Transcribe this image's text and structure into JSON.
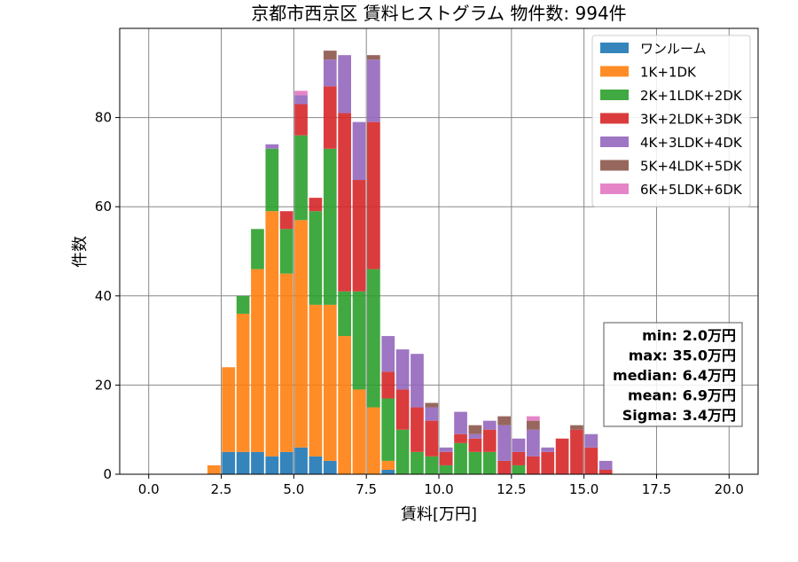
{
  "chart_data": {
    "type": "bar",
    "title": "京都市西京区 賃料ヒストグラム 物件数: 994件",
    "xlabel": "賃料[万円]",
    "ylabel": "件数",
    "xlim": [
      -1.0,
      21.0
    ],
    "ylim": [
      0,
      100
    ],
    "x_ticks": [
      0.0,
      2.5,
      5.0,
      7.5,
      10.0,
      12.5,
      15.0,
      17.5,
      20.0
    ],
    "x_tick_labels": [
      "0.0",
      "2.5",
      "5.0",
      "7.5",
      "10.0",
      "12.5",
      "15.0",
      "17.5",
      "20.0"
    ],
    "y_ticks": [
      0,
      20,
      40,
      60,
      80
    ],
    "y_tick_labels": [
      "0",
      "20",
      "40",
      "60",
      "80"
    ],
    "grid": true,
    "stacked": true,
    "legend_position": "top-right",
    "bin_width": 0.5,
    "bin_starts": [
      2.0,
      2.5,
      3.0,
      3.5,
      4.0,
      4.5,
      5.0,
      5.5,
      6.0,
      6.5,
      7.0,
      7.5,
      8.0,
      8.5,
      9.0,
      9.5,
      10.0,
      10.5,
      11.0,
      11.5,
      12.0,
      12.5,
      13.0,
      13.5,
      14.0,
      14.5,
      15.0,
      15.5
    ],
    "series": [
      {
        "name": "ワンルーム",
        "color": "#1f77b4",
        "values": [
          0,
          5,
          5,
          5,
          4,
          5,
          6,
          4,
          3,
          0,
          0,
          0,
          1,
          0,
          0,
          0,
          0,
          0,
          0,
          0,
          0,
          0,
          0,
          0,
          0,
          0,
          0,
          0
        ]
      },
      {
        "name": "1K+1DK",
        "color": "#ff7f0e",
        "values": [
          2,
          19,
          31,
          41,
          55,
          40,
          51,
          34,
          35,
          31,
          19,
          15,
          2,
          0,
          0,
          0,
          0,
          0,
          0,
          0,
          0,
          0,
          0,
          0,
          0,
          0,
          0,
          0
        ]
      },
      {
        "name": "2K+1LDK+2DK",
        "color": "#2ca02c",
        "values": [
          0,
          0,
          4,
          9,
          14,
          10,
          19,
          21,
          35,
          10,
          22,
          31,
          14,
          10,
          5,
          4,
          2,
          7,
          5,
          5,
          0,
          2,
          0,
          0,
          0,
          0,
          0,
          0
        ]
      },
      {
        "name": "3K+2LDK+3DK",
        "color": "#d62728",
        "values": [
          0,
          0,
          0,
          0,
          0,
          4,
          7,
          3,
          14,
          40,
          25,
          33,
          6,
          9,
          10,
          8,
          3,
          2,
          3,
          5,
          3,
          3,
          4,
          5,
          8,
          10,
          6,
          1
        ]
      },
      {
        "name": "4K+3LDK+4DK",
        "color": "#9467bd",
        "values": [
          0,
          0,
          0,
          0,
          1,
          0,
          2,
          0,
          6,
          13,
          13,
          14,
          8,
          9,
          12,
          3,
          1,
          5,
          1,
          2,
          8,
          3,
          6,
          1,
          0,
          0,
          3,
          2
        ]
      },
      {
        "name": "5K+4LDK+5DK",
        "color": "#8c564b",
        "values": [
          0,
          0,
          0,
          0,
          0,
          0,
          0,
          0,
          2,
          0,
          0,
          1,
          0,
          0,
          0,
          1,
          0,
          0,
          2,
          0,
          2,
          0,
          2,
          0,
          0,
          1,
          0,
          0
        ]
      },
      {
        "name": "6K+5LDK+6DK",
        "color": "#e377c2",
        "values": [
          0,
          0,
          0,
          0,
          0,
          0,
          1,
          0,
          0,
          0,
          0,
          0,
          0,
          0,
          0,
          0,
          0,
          0,
          0,
          0,
          0,
          0,
          1,
          0,
          0,
          0,
          0,
          0
        ]
      }
    ],
    "stats": [
      "min: 2.0万円",
      "max: 35.0万円",
      "median: 6.4万円",
      "mean: 6.9万円",
      "Sigma: 3.4万円"
    ]
  }
}
